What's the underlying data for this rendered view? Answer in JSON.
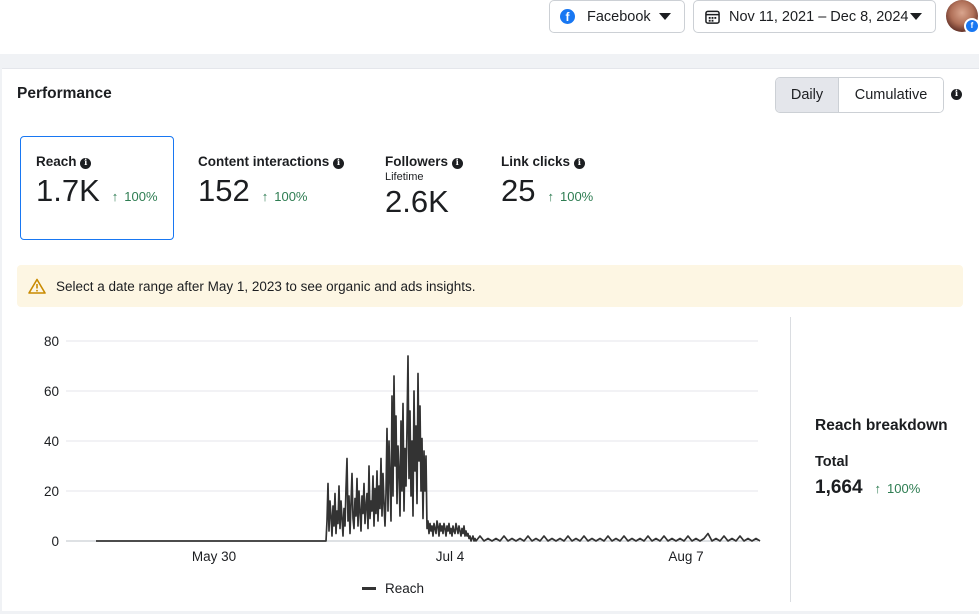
{
  "header": {
    "platform_select": {
      "value": "Facebook",
      "icon": "facebook-icon"
    },
    "date_range": {
      "value": "Nov 11, 2021 – Dec 8, 2024",
      "icon": "calendar-icon"
    }
  },
  "performance": {
    "title": "Performance",
    "toggle": {
      "daily": "Daily",
      "cumulative": "Cumulative"
    },
    "metrics": [
      {
        "label": "Reach",
        "value": "1.7K",
        "change": "100%"
      },
      {
        "label": "Content interactions",
        "value": "152",
        "change": "100%"
      },
      {
        "label": "Followers",
        "sublabel": "Lifetime",
        "value": "2.6K"
      },
      {
        "label": "Link clicks",
        "value": "25",
        "change": "100%"
      }
    ],
    "notice": "Select a date range after May 1, 2023 to see organic and ads insights."
  },
  "chart_data": {
    "type": "line",
    "series": [
      {
        "name": "Reach",
        "color": "#333333"
      }
    ],
    "x_ticks": [
      "May 30",
      "Jul 4",
      "Aug 7"
    ],
    "y_ticks": [
      0,
      20,
      40,
      60,
      80
    ],
    "ylim": [
      0,
      80
    ],
    "grid": true,
    "legend": "bottom",
    "points": [
      [
        0,
        0
      ],
      [
        10,
        0
      ],
      [
        20,
        0
      ],
      [
        30,
        0
      ],
      [
        40,
        0
      ],
      [
        50,
        0
      ],
      [
        60,
        0
      ],
      [
        70,
        0
      ],
      [
        80,
        0
      ],
      [
        90,
        0
      ],
      [
        100,
        0
      ],
      [
        110,
        0
      ],
      [
        120,
        0
      ],
      [
        130,
        0
      ],
      [
        140,
        0
      ],
      [
        150,
        0
      ],
      [
        160,
        0
      ],
      [
        170,
        0
      ],
      [
        180,
        0
      ],
      [
        190,
        0
      ],
      [
        200,
        0
      ],
      [
        210,
        0
      ],
      [
        220,
        0
      ],
      [
        230,
        0
      ],
      [
        231,
        8
      ],
      [
        232,
        23
      ],
      [
        233,
        4
      ],
      [
        234,
        16
      ],
      [
        235,
        10
      ],
      [
        236,
        2
      ],
      [
        237,
        14
      ],
      [
        238,
        6
      ],
      [
        239,
        19
      ],
      [
        240,
        3
      ],
      [
        241,
        12
      ],
      [
        242,
        7
      ],
      [
        243,
        22
      ],
      [
        244,
        5
      ],
      [
        245,
        16
      ],
      [
        246,
        9
      ],
      [
        247,
        2
      ],
      [
        248,
        13
      ],
      [
        249,
        6
      ],
      [
        250,
        21
      ],
      [
        251,
        33
      ],
      [
        252,
        8
      ],
      [
        253,
        18
      ],
      [
        254,
        3
      ],
      [
        255,
        15
      ],
      [
        256,
        27
      ],
      [
        257,
        9
      ],
      [
        258,
        5
      ],
      [
        259,
        17
      ],
      [
        260,
        10
      ],
      [
        261,
        25
      ],
      [
        262,
        6
      ],
      [
        263,
        20
      ],
      [
        264,
        12
      ],
      [
        265,
        4
      ],
      [
        266,
        18
      ],
      [
        267,
        11
      ],
      [
        268,
        23
      ],
      [
        269,
        7
      ],
      [
        270,
        14
      ],
      [
        271,
        19
      ],
      [
        272,
        5
      ],
      [
        273,
        30
      ],
      [
        274,
        9
      ],
      [
        275,
        16
      ],
      [
        276,
        12
      ],
      [
        277,
        26
      ],
      [
        278,
        6
      ],
      [
        279,
        21
      ],
      [
        280,
        11
      ],
      [
        281,
        28
      ],
      [
        282,
        8
      ],
      [
        283,
        22
      ],
      [
        284,
        13
      ],
      [
        285,
        33
      ],
      [
        286,
        10
      ],
      [
        287,
        27
      ],
      [
        288,
        15
      ],
      [
        289,
        6
      ],
      [
        290,
        19
      ],
      [
        291,
        45
      ],
      [
        292,
        12
      ],
      [
        293,
        40
      ],
      [
        294,
        25
      ],
      [
        295,
        8
      ],
      [
        296,
        58
      ],
      [
        297,
        18
      ],
      [
        298,
        66
      ],
      [
        299,
        30
      ],
      [
        300,
        50
      ],
      [
        301,
        15
      ],
      [
        302,
        38
      ],
      [
        303,
        28
      ],
      [
        304,
        10
      ],
      [
        305,
        48
      ],
      [
        306,
        20
      ],
      [
        307,
        55
      ],
      [
        308,
        12
      ],
      [
        309,
        37
      ],
      [
        310,
        22
      ],
      [
        311,
        45
      ],
      [
        312,
        74
      ],
      [
        313,
        25
      ],
      [
        314,
        52
      ],
      [
        315,
        18
      ],
      [
        316,
        40
      ],
      [
        317,
        10
      ],
      [
        318,
        60
      ],
      [
        319,
        28
      ],
      [
        320,
        46
      ],
      [
        321,
        15
      ],
      [
        322,
        67
      ],
      [
        323,
        32
      ],
      [
        324,
        54
      ],
      [
        325,
        20
      ],
      [
        326,
        41
      ],
      [
        327,
        9
      ],
      [
        328,
        36
      ],
      [
        329,
        20
      ],
      [
        330,
        34
      ],
      [
        331,
        5
      ],
      [
        332,
        8
      ],
      [
        333,
        3
      ],
      [
        334,
        7
      ],
      [
        335,
        4
      ],
      [
        336,
        6
      ],
      [
        337,
        2
      ],
      [
        338,
        7
      ],
      [
        339,
        5
      ],
      [
        340,
        3
      ],
      [
        341,
        8
      ],
      [
        342,
        6
      ],
      [
        343,
        2
      ],
      [
        344,
        7
      ],
      [
        345,
        4
      ],
      [
        346,
        6
      ],
      [
        347,
        3
      ],
      [
        348,
        7
      ],
      [
        349,
        5
      ],
      [
        350,
        2
      ],
      [
        351,
        6
      ],
      [
        352,
        4
      ],
      [
        353,
        7
      ],
      [
        354,
        3
      ],
      [
        355,
        5
      ],
      [
        356,
        2
      ],
      [
        357,
        6
      ],
      [
        358,
        4
      ],
      [
        359,
        3
      ],
      [
        360,
        7
      ],
      [
        361,
        5
      ],
      [
        362,
        3
      ],
      [
        363,
        6
      ],
      [
        364,
        4
      ],
      [
        365,
        2
      ],
      [
        366,
        5
      ],
      [
        367,
        3
      ],
      [
        368,
        6
      ],
      [
        369,
        2
      ],
      [
        370,
        4
      ],
      [
        371,
        2
      ],
      [
        372,
        3
      ],
      [
        373,
        1
      ],
      [
        374,
        2
      ],
      [
        375,
        0
      ],
      [
        376,
        1
      ],
      [
        377,
        2
      ],
      [
        378,
        0
      ],
      [
        379,
        1
      ],
      [
        380,
        0
      ],
      [
        384,
        2
      ],
      [
        388,
        0
      ],
      [
        392,
        1
      ],
      [
        396,
        0
      ],
      [
        400,
        1
      ],
      [
        404,
        0
      ],
      [
        408,
        2
      ],
      [
        412,
        0
      ],
      [
        416,
        1
      ],
      [
        420,
        0
      ],
      [
        424,
        1
      ],
      [
        428,
        0
      ],
      [
        432,
        2
      ],
      [
        436,
        0
      ],
      [
        440,
        1
      ],
      [
        444,
        0
      ],
      [
        448,
        2
      ],
      [
        452,
        0
      ],
      [
        456,
        1
      ],
      [
        460,
        0
      ],
      [
        464,
        1
      ],
      [
        468,
        0
      ],
      [
        472,
        2
      ],
      [
        476,
        0
      ],
      [
        480,
        1
      ],
      [
        484,
        0
      ],
      [
        488,
        2
      ],
      [
        492,
        0
      ],
      [
        496,
        1
      ],
      [
        500,
        0
      ],
      [
        504,
        1
      ],
      [
        508,
        0
      ],
      [
        512,
        2
      ],
      [
        516,
        0
      ],
      [
        520,
        1
      ],
      [
        524,
        0
      ],
      [
        528,
        2
      ],
      [
        532,
        0
      ],
      [
        536,
        1
      ],
      [
        540,
        0
      ],
      [
        544,
        1
      ],
      [
        548,
        0
      ],
      [
        552,
        2
      ],
      [
        556,
        0
      ],
      [
        560,
        1
      ],
      [
        564,
        0
      ],
      [
        568,
        2
      ],
      [
        572,
        0
      ],
      [
        576,
        1
      ],
      [
        580,
        0
      ],
      [
        584,
        1
      ],
      [
        588,
        0
      ],
      [
        592,
        2
      ],
      [
        596,
        0
      ],
      [
        600,
        1
      ],
      [
        604,
        0
      ],
      [
        608,
        1
      ],
      [
        612,
        3
      ],
      [
        616,
        0
      ],
      [
        620,
        1
      ],
      [
        624,
        0
      ],
      [
        628,
        2
      ],
      [
        632,
        0
      ],
      [
        636,
        1
      ],
      [
        640,
        0
      ],
      [
        644,
        2
      ],
      [
        648,
        0
      ],
      [
        652,
        1
      ],
      [
        656,
        0
      ],
      [
        660,
        1
      ],
      [
        664,
        0
      ]
    ]
  },
  "reach_breakdown": {
    "title": "Reach breakdown",
    "total_label": "Total",
    "total_value": "1,664",
    "change": "100%"
  }
}
